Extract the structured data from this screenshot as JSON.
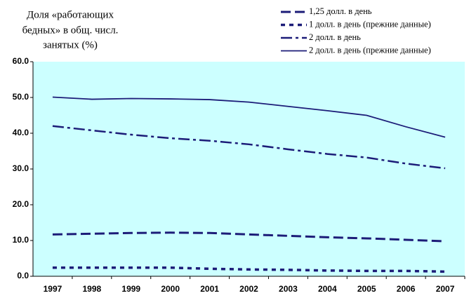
{
  "chart_data": {
    "type": "line",
    "title": [
      "Доля «работающих",
      "бедных» в общ. числ.",
      "занятых (%)"
    ],
    "categories": [
      "1997",
      "1998",
      "1999",
      "2000",
      "2001",
      "2002",
      "2003",
      "2004",
      "2005",
      "2006",
      "2007"
    ],
    "series": [
      {
        "name": "1,25 долл. в день",
        "color": "#1c1c78",
        "style": "dashed",
        "values": [
          11.7,
          11.9,
          12.1,
          12.2,
          12.1,
          11.7,
          11.3,
          10.9,
          10.6,
          10.2,
          9.8
        ]
      },
      {
        "name": "1 долл. в день (прежние данные)",
        "color": "#1c1c78",
        "style": "dotted",
        "values": [
          2.4,
          2.4,
          2.4,
          2.4,
          2.1,
          1.9,
          1.8,
          1.6,
          1.5,
          1.5,
          1.3
        ]
      },
      {
        "name": "2 долл. в день",
        "color": "#1c1c78",
        "style": "dash-dot",
        "values": [
          42.0,
          40.8,
          39.6,
          38.6,
          37.9,
          36.9,
          35.5,
          34.2,
          33.2,
          31.5,
          30.2
        ]
      },
      {
        "name": "2 долл. в день (прежние данные)",
        "color": "#1c1c78",
        "style": "solid",
        "values": [
          50.1,
          49.5,
          49.7,
          49.6,
          49.4,
          48.7,
          47.5,
          46.3,
          45.0,
          41.8,
          38.9
        ]
      }
    ],
    "ylim": [
      0,
      60
    ],
    "yticks": [
      {
        "value": 0,
        "label": "0.0"
      },
      {
        "value": 10,
        "label": "10.0"
      },
      {
        "value": 20,
        "label": "20.0"
      },
      {
        "value": 30,
        "label": "30.0"
      },
      {
        "value": 40,
        "label": "40.0"
      },
      {
        "value": 50,
        "label": "50.0"
      },
      {
        "value": 60,
        "label": "60.0"
      }
    ],
    "plot_background": "#ccffff"
  }
}
